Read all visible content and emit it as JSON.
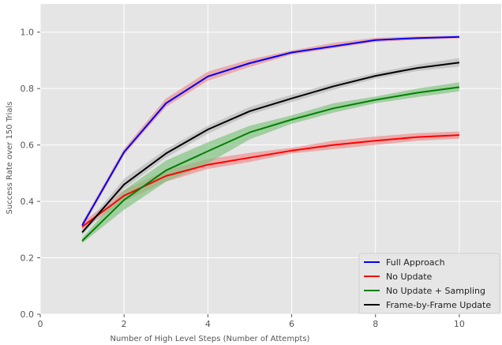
{
  "chart_data": {
    "type": "line",
    "title": "",
    "xlabel": "Number of High Level Steps (Number of Attempts)",
    "ylabel": "Success Rate over 150 Trials",
    "xlim": [
      0,
      11
    ],
    "ylim": [
      0.0,
      1.1
    ],
    "xticks": [
      0,
      2,
      4,
      6,
      8,
      10
    ],
    "yticks": [
      0.0,
      0.2,
      0.4,
      0.6,
      0.8,
      1.0
    ],
    "xtick_labels": [
      "0",
      "2",
      "4",
      "6",
      "8",
      "10"
    ],
    "ytick_labels": [
      "0.0",
      "0.2",
      "0.4",
      "0.6",
      "0.8",
      "1.0"
    ],
    "grid": true,
    "background": "#e5e5e5",
    "legend_position": "lower-right",
    "x": [
      1,
      2,
      3,
      4,
      5,
      6,
      7,
      8,
      9,
      10
    ],
    "series": [
      {
        "name": "Full Approach",
        "color": "#0000ff",
        "band_color": "#ef8a8a",
        "values": [
          0.315,
          0.575,
          0.748,
          0.843,
          0.89,
          0.928,
          0.95,
          0.972,
          0.979,
          0.983
        ],
        "lower": [
          0.305,
          0.565,
          0.735,
          0.828,
          0.877,
          0.92,
          0.943,
          0.965,
          0.973,
          0.978
        ],
        "upper": [
          0.325,
          0.587,
          0.765,
          0.86,
          0.903,
          0.935,
          0.962,
          0.98,
          0.985,
          0.988
        ]
      },
      {
        "name": "No Update",
        "color": "#ff0000",
        "band_color": "#ef8a8a",
        "values": [
          0.31,
          0.42,
          0.49,
          0.53,
          0.555,
          0.58,
          0.6,
          0.615,
          0.628,
          0.635
        ],
        "lower": [
          0.3,
          0.4,
          0.47,
          0.515,
          0.54,
          0.57,
          0.585,
          0.6,
          0.615,
          0.622
        ],
        "upper": [
          0.325,
          0.44,
          0.51,
          0.55,
          0.572,
          0.59,
          0.615,
          0.63,
          0.642,
          0.648
        ]
      },
      {
        "name": "No Update + Sampling",
        "color": "#008000",
        "band_color": "#7dc27d",
        "values": [
          0.26,
          0.405,
          0.51,
          0.578,
          0.645,
          0.69,
          0.73,
          0.76,
          0.785,
          0.805
        ],
        "lower": [
          0.252,
          0.37,
          0.47,
          0.535,
          0.62,
          0.675,
          0.715,
          0.748,
          0.77,
          0.79
        ],
        "upper": [
          0.27,
          0.44,
          0.545,
          0.61,
          0.668,
          0.705,
          0.748,
          0.772,
          0.8,
          0.822
        ]
      },
      {
        "name": "Frame-by-Frame Update",
        "color": "#000000",
        "band_color": "#b5b5b5",
        "values": [
          0.29,
          0.46,
          0.57,
          0.655,
          0.72,
          0.765,
          0.808,
          0.845,
          0.873,
          0.892
        ],
        "lower": [
          0.28,
          0.445,
          0.555,
          0.64,
          0.708,
          0.752,
          0.796,
          0.835,
          0.862,
          0.878
        ],
        "upper": [
          0.3,
          0.48,
          0.585,
          0.668,
          0.735,
          0.778,
          0.82,
          0.856,
          0.885,
          0.908
        ]
      }
    ]
  }
}
